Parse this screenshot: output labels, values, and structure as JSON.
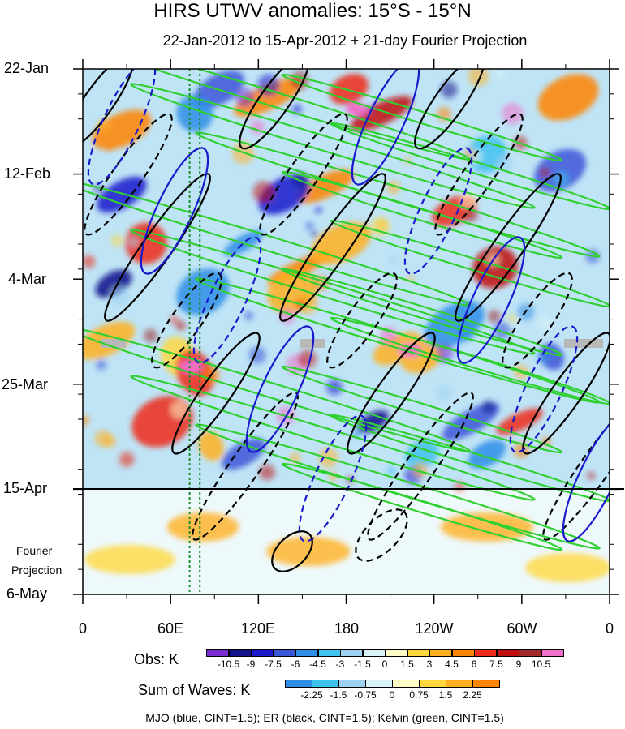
{
  "chart_data": {
    "type": "heatmap",
    "title": "HIRS UTWV anomalies: 15°S - 15°N",
    "subtitle": "22-Jan-2012 to 15-Apr-2012 + 21-day Fourier Projection",
    "xticklabels": [
      "0",
      "60E",
      "120E",
      "180",
      "120W",
      "60W",
      "0"
    ],
    "x_values_deg_east": [
      0,
      60,
      120,
      180,
      240,
      300,
      360
    ],
    "yticklabels": [
      "22-Jan",
      "12-Feb",
      "4-Mar",
      "25-Mar",
      "15-Apr",
      "6-May"
    ],
    "y_dates": [
      "2012-01-22",
      "2012-02-12",
      "2012-03-04",
      "2012-03-25",
      "2012-04-15",
      "2012-05-06"
    ],
    "fourier_projection_label": [
      "Fourier",
      "Projection"
    ],
    "fourier_projection_start": "2012-04-15",
    "reference_lines_deg_east": [
      73,
      80
    ],
    "obs_colorbar": {
      "label": "Obs: K",
      "levels": [
        "-10.5",
        "-9",
        "-7.5",
        "-6",
        "-4.5",
        "-3",
        "-1.5",
        "0",
        "1.5",
        "3",
        "4.5",
        "6",
        "7.5",
        "9",
        "10.5"
      ],
      "colors": [
        "#7a2ed0",
        "#12128a",
        "#1a1acc",
        "#3c56d8",
        "#2f8ee6",
        "#3ec2ee",
        "#9ed2f2",
        "#d8f2f8",
        "#fffcc8",
        "#ffd840",
        "#ffb020",
        "#ff8400",
        "#ee2a18",
        "#c00f10",
        "#a02a2a",
        "#f070c8"
      ]
    },
    "waves_colorbar": {
      "label": "Sum of Waves: K",
      "levels": [
        "-2.25",
        "-1.5",
        "-0.75",
        "0",
        "0.75",
        "1.5",
        "2.25"
      ],
      "colors": [
        "#2f8ee6",
        "#3ec2ee",
        "#9ed2f2",
        "#d8f2f8",
        "#fffcc8",
        "#ffd840",
        "#ffb020",
        "#ff8400"
      ]
    },
    "legend": "MJO (blue, CINT=1.5); ER (black, CINT=1.5); Kelvin (green, CINT=1.5)",
    "series_colors": {
      "MJO": "#1a1acc",
      "ER": "#000000",
      "Kelvin": "#2fd030"
    }
  }
}
